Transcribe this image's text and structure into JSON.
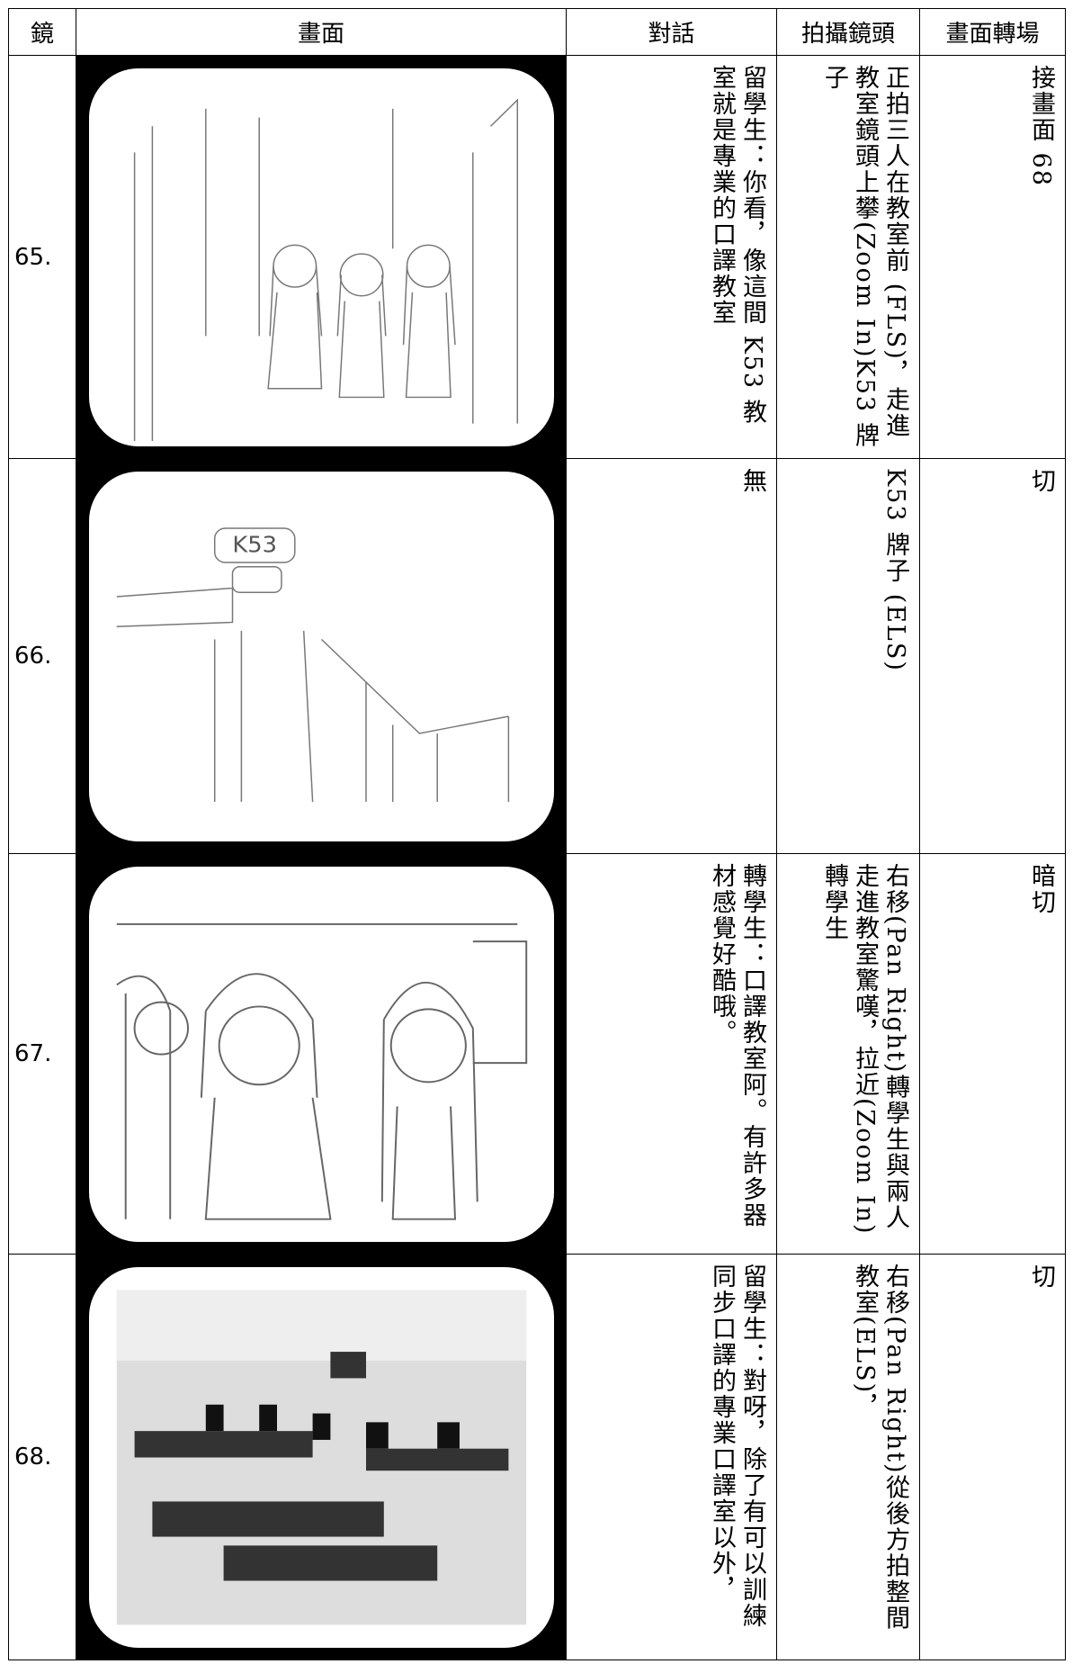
{
  "header": [
    "鏡",
    "畫面",
    "對話",
    "拍攝鏡頭",
    "畫面轉場"
  ],
  "rows": [
    {
      "shot": "65.",
      "dialogue": "留學生：你看，像這間 K53 教室就是專業的口譯教室",
      "camera": "正拍三人在教室前 (FLS)，走進教室鏡頭上攀(Zoom In)K53 牌子",
      "transition": "接畫面 68"
    },
    {
      "shot": "66.",
      "sign_label": "K53",
      "dialogue": "無",
      "camera": "K53 牌子 (ELS)",
      "transition": "切"
    },
    {
      "shot": "67.",
      "dialogue": "轉學生：口譯教室阿。有許多器材感覺好酷哦。",
      "camera": "右移(Pan Right)轉學生與兩人走進教室驚嘆，拉近(Zoom In)轉學生",
      "transition": "暗切"
    },
    {
      "shot": "68.",
      "dialogue": "留學生：對呀，除了有可以訓練同步口譯的專業口譯室以外，",
      "camera": "右移(Pan Right)從後方拍整間教室(ELS)，",
      "transition": "切"
    }
  ]
}
